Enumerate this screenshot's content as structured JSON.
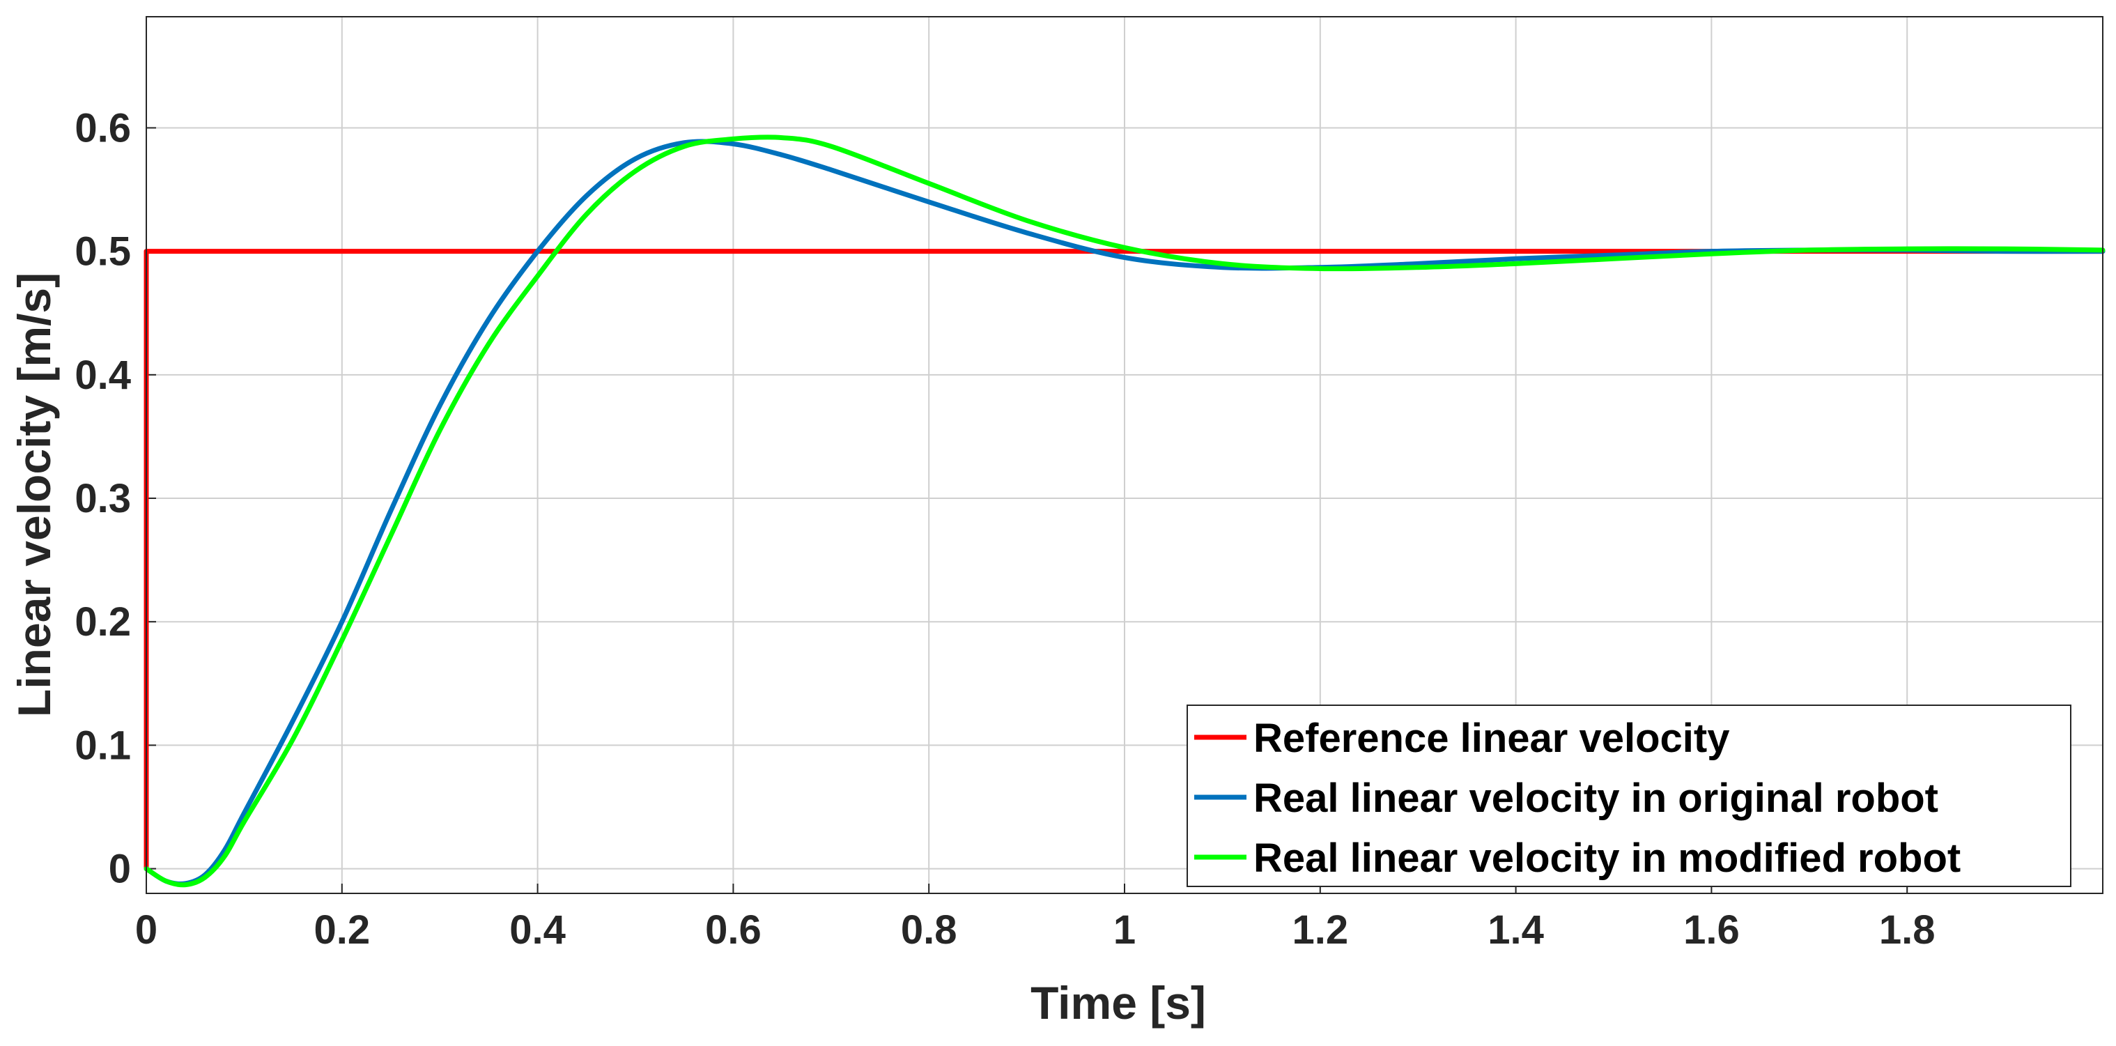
{
  "chart_data": {
    "type": "line",
    "title": "",
    "xlabel": "Time [s]",
    "ylabel": "Linear velocity [m/s]",
    "xlim": [
      0,
      2
    ],
    "ylim": [
      -0.02,
      0.69
    ],
    "grid": true,
    "legend_position": "bottom-right",
    "x_ticks": [
      0,
      0.2,
      0.4,
      0.6,
      0.8,
      1,
      1.2,
      1.4,
      1.6,
      1.8
    ],
    "x_tick_labels": [
      "0",
      "0.2",
      "0.4",
      "0.6",
      "0.8",
      "1",
      "1.2",
      "1.4",
      "1.6",
      "1.8"
    ],
    "y_ticks": [
      0,
      0.1,
      0.2,
      0.3,
      0.4,
      0.5,
      0.6
    ],
    "y_tick_labels": [
      "0",
      "0.1",
      "0.2",
      "0.3",
      "0.4",
      "0.5",
      "0.6"
    ],
    "series": [
      {
        "name": "Reference linear velocity",
        "color": "#ff0000",
        "x": [
          0,
          0,
          2
        ],
        "y": [
          0,
          0.5,
          0.5
        ]
      },
      {
        "name": "Real linear velocity in original robot",
        "color": "#0072bd",
        "x": [
          0,
          0.02,
          0.04,
          0.06,
          0.08,
          0.1,
          0.15,
          0.2,
          0.25,
          0.3,
          0.35,
          0.4,
          0.45,
          0.5,
          0.55,
          0.6,
          0.65,
          0.7,
          0.8,
          0.9,
          1.0,
          1.1,
          1.2,
          1.3,
          1.4,
          1.5,
          1.6,
          1.7,
          1.8,
          1.9,
          2.0
        ],
        "y": [
          0,
          -0.01,
          -0.012,
          -0.005,
          0.015,
          0.045,
          0.12,
          0.2,
          0.29,
          0.375,
          0.445,
          0.5,
          0.545,
          0.575,
          0.588,
          0.587,
          0.578,
          0.566,
          0.54,
          0.515,
          0.495,
          0.487,
          0.487,
          0.49,
          0.494,
          0.497,
          0.5,
          0.501,
          0.501,
          0.5,
          0.5
        ]
      },
      {
        "name": "Real linear velocity in modified robot",
        "color": "#00ff00",
        "x": [
          0,
          0.02,
          0.04,
          0.06,
          0.08,
          0.1,
          0.15,
          0.2,
          0.25,
          0.3,
          0.35,
          0.4,
          0.45,
          0.5,
          0.55,
          0.6,
          0.65,
          0.7,
          0.8,
          0.9,
          1.0,
          1.1,
          1.2,
          1.3,
          1.4,
          1.5,
          1.6,
          1.7,
          1.8,
          1.9,
          2.0
        ],
        "y": [
          0,
          -0.01,
          -0.013,
          -0.007,
          0.01,
          0.038,
          0.105,
          0.185,
          0.27,
          0.355,
          0.425,
          0.48,
          0.53,
          0.565,
          0.585,
          0.591,
          0.592,
          0.585,
          0.555,
          0.525,
          0.503,
          0.49,
          0.486,
          0.487,
          0.49,
          0.494,
          0.498,
          0.501,
          0.502,
          0.502,
          0.501
        ]
      }
    ]
  }
}
